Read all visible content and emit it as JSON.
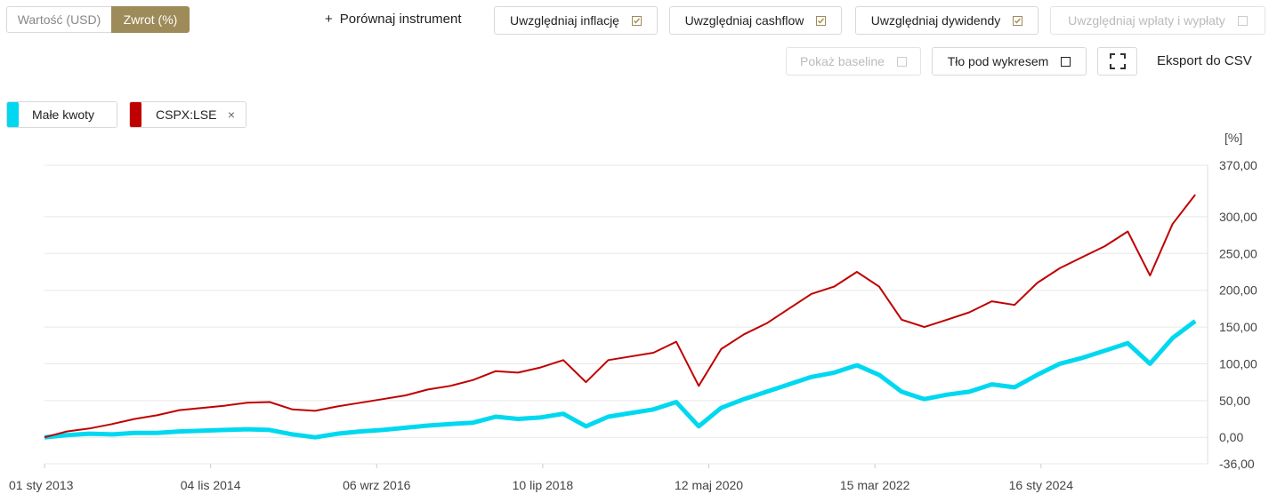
{
  "controls": {
    "mode_toggle": [
      {
        "label": "Wartość (USD)",
        "active": false
      },
      {
        "label": "Zwrot (%)",
        "active": true
      }
    ],
    "compare": "Porównaj instrument",
    "options": [
      {
        "label": "Uwzględniaj inflację",
        "checked": true,
        "disabled": false
      },
      {
        "label": "Uwzględniaj cashflow",
        "checked": true,
        "disabled": false
      },
      {
        "label": "Uwzględniaj dywidendy",
        "checked": true,
        "disabled": false
      },
      {
        "label": "Uwzględniaj wpłaty i wypłaty",
        "checked": false,
        "disabled": true
      },
      {
        "label": "Pokaż baseline",
        "checked": false,
        "disabled": true
      },
      {
        "label": "Tło pod wykresem",
        "checked": false,
        "disabled": false
      }
    ],
    "export": "Eksport do CSV"
  },
  "chart_data": {
    "type": "line",
    "y_unit": "[%]",
    "x": [
      "2013-01-01",
      "2013-04-01",
      "2013-07-01",
      "2013-10-01",
      "2014-01-01",
      "2014-04-01",
      "2014-07-01",
      "2014-10-01",
      "2015-01-01",
      "2015-04-01",
      "2015-07-01",
      "2015-10-01",
      "2016-01-01",
      "2016-04-01",
      "2016-07-01",
      "2016-10-01",
      "2017-01-01",
      "2017-04-01",
      "2017-07-01",
      "2017-10-01",
      "2018-01-01",
      "2018-04-01",
      "2018-07-01",
      "2018-10-01",
      "2019-01-01",
      "2019-04-01",
      "2019-07-01",
      "2019-10-01",
      "2020-01-01",
      "2020-04-01",
      "2020-07-01",
      "2020-10-01",
      "2021-01-01",
      "2021-04-01",
      "2021-07-01",
      "2021-10-01",
      "2022-01-01",
      "2022-04-01",
      "2022-07-01",
      "2022-10-01",
      "2023-01-01",
      "2023-04-01",
      "2023-07-01",
      "2023-10-01",
      "2024-01-01",
      "2024-04-01",
      "2024-07-01",
      "2024-10-01",
      "2025-01-01",
      "2025-04-01",
      "2025-07-01",
      "2025-10-01"
    ],
    "series": [
      {
        "name": "Małe kwoty",
        "color": "#00d8f0",
        "removable": false,
        "values": [
          0,
          3,
          5,
          4,
          6,
          6,
          8,
          9,
          10,
          11,
          10,
          4,
          0,
          5,
          8,
          10,
          13,
          16,
          18,
          20,
          28,
          25,
          27,
          32,
          15,
          28,
          33,
          38,
          48,
          15,
          40,
          52,
          62,
          72,
          82,
          88,
          98,
          85,
          62,
          52,
          58,
          62,
          72,
          68,
          85,
          100,
          108,
          118,
          128,
          100,
          135,
          158
        ]
      },
      {
        "name": "CSPX:LSE",
        "color": "#c00000",
        "removable": true,
        "values": [
          0,
          8,
          12,
          18,
          25,
          30,
          37,
          40,
          43,
          47,
          48,
          38,
          36,
          42,
          47,
          52,
          57,
          65,
          70,
          78,
          90,
          88,
          95,
          105,
          75,
          105,
          110,
          115,
          130,
          70,
          120,
          140,
          155,
          175,
          195,
          205,
          225,
          205,
          160,
          150,
          160,
          170,
          185,
          180,
          210,
          230,
          245,
          260,
          280,
          220,
          290,
          330
        ]
      }
    ],
    "xlim": [
      "2013-01-01",
      "2025-11-20"
    ],
    "xticks": [
      {
        "value": "2013-01-01",
        "label": "01 sty 2013"
      },
      {
        "value": "2014-11-04",
        "label": "04 lis 2014"
      },
      {
        "value": "2016-09-06",
        "label": "06 wrz 2016"
      },
      {
        "value": "2018-07-10",
        "label": "10 lip 2018"
      },
      {
        "value": "2020-05-12",
        "label": "12 maj 2020"
      },
      {
        "value": "2022-03-15",
        "label": "15 mar 2022"
      },
      {
        "value": "2024-01-16",
        "label": "16 sty 2024"
      }
    ],
    "ylim": [
      -36,
      370
    ],
    "yticks": [
      {
        "value": -36,
        "label": "-36,00"
      },
      {
        "value": 0,
        "label": "0,00"
      },
      {
        "value": 50,
        "label": "50,00"
      },
      {
        "value": 100,
        "label": "100,00"
      },
      {
        "value": 150,
        "label": "150,00"
      },
      {
        "value": 200,
        "label": "200,00"
      },
      {
        "value": 250,
        "label": "250,00"
      },
      {
        "value": 300,
        "label": "300,00"
      },
      {
        "value": 370,
        "label": "370,00"
      }
    ],
    "grid": true
  }
}
